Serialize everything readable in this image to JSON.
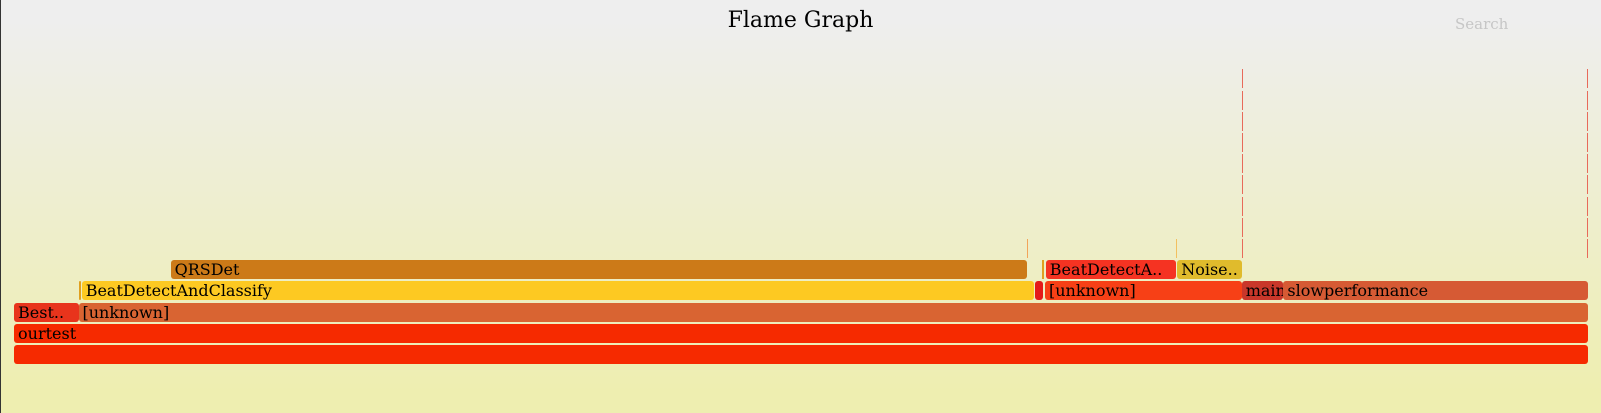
{
  "title": "Flame Graph",
  "search_label": "Search",
  "colors": {
    "bg_top": "#eeeeee",
    "bg_bottom": "#eeeeb0"
  },
  "chart_data": {
    "type": "flamegraph",
    "total_samples": 100,
    "frames": [
      {
        "label": "",
        "depth": 0,
        "start": 0,
        "width": 100,
        "color": "#f62a00"
      },
      {
        "label": "ourtest",
        "depth": 1,
        "start": 0,
        "width": 100,
        "color": "#f62a00"
      },
      {
        "label": "Best..",
        "depth": 2,
        "start": 0,
        "width": 4.1,
        "color": "#e8341c"
      },
      {
        "label": "[unknown]",
        "depth": 2,
        "start": 4.1,
        "width": 95.9,
        "color": "#d96432"
      },
      {
        "label": "",
        "depth": 3,
        "start": 4.1,
        "width": 0.15,
        "color": "#e0a020"
      },
      {
        "label": "BeatDetectAndClassify",
        "depth": 3,
        "start": 4.3,
        "width": 60.5,
        "color": "#fdc922"
      },
      {
        "label": "",
        "depth": 3,
        "start": 64.85,
        "width": 0.5,
        "color": "#e41a1a"
      },
      {
        "label": "[unknown]",
        "depth": 3,
        "start": 65.5,
        "width": 12.5,
        "color": "#f74016"
      },
      {
        "label": "main",
        "depth": 3,
        "start": 78.0,
        "width": 2.6,
        "color": "#c9372a"
      },
      {
        "label": "slowperformance",
        "depth": 3,
        "start": 80.65,
        "width": 19.35,
        "color": "#d65a34"
      },
      {
        "label": "QRSDet",
        "depth": 4,
        "start": 9.95,
        "width": 54.4,
        "color": "#cc7a18"
      },
      {
        "label": "",
        "depth": 4,
        "start": 65.3,
        "width": 0.12,
        "color": "#e0a020"
      },
      {
        "label": "BeatDetectA..",
        "depth": 4,
        "start": 65.55,
        "width": 8.3,
        "color": "#f53322"
      },
      {
        "label": "Noise..",
        "depth": 4,
        "start": 73.9,
        "width": 4.1,
        "color": "#e0bb2c"
      },
      {
        "label": "",
        "depth": 5,
        "start": 64.35,
        "width": 0.06,
        "color": "#f2a45a"
      },
      {
        "label": "",
        "depth": 5,
        "start": 64.35,
        "width": 0.06,
        "color": "#f2a45a"
      },
      {
        "label": "",
        "depth": 5,
        "start": 64.35,
        "width": 0.06,
        "color": "#f2a45a"
      },
      {
        "label": "",
        "depth": 5,
        "start": 73.85,
        "width": 0.06,
        "color": "#f2c060"
      },
      {
        "label": "",
        "depth": 5,
        "start": 78.0,
        "width": 0.06,
        "color": "#e86a5a"
      },
      {
        "label": "",
        "depth": 6,
        "start": 78.0,
        "width": 0.06,
        "color": "#e86a5a"
      },
      {
        "label": "",
        "depth": 7,
        "start": 78.0,
        "width": 0.06,
        "color": "#e86a5a"
      },
      {
        "label": "",
        "depth": 8,
        "start": 78.0,
        "width": 0.06,
        "color": "#e86a5a"
      },
      {
        "label": "",
        "depth": 9,
        "start": 78.0,
        "width": 0.06,
        "color": "#e86a5a"
      },
      {
        "label": "",
        "depth": 10,
        "start": 78.0,
        "width": 0.06,
        "color": "#e86a5a"
      },
      {
        "label": "",
        "depth": 11,
        "start": 78.0,
        "width": 0.06,
        "color": "#e86a5a"
      },
      {
        "label": "",
        "depth": 12,
        "start": 78.0,
        "width": 0.06,
        "color": "#e86a5a"
      },
      {
        "label": "",
        "depth": 13,
        "start": 78.0,
        "width": 0.06,
        "color": "#e86a5a"
      },
      {
        "label": "",
        "depth": 5,
        "start": 99.94,
        "width": 0.06,
        "color": "#e86a5a"
      },
      {
        "label": "",
        "depth": 6,
        "start": 99.94,
        "width": 0.06,
        "color": "#e86a5a"
      },
      {
        "label": "",
        "depth": 7,
        "start": 99.94,
        "width": 0.06,
        "color": "#e86a5a"
      },
      {
        "label": "",
        "depth": 8,
        "start": 99.94,
        "width": 0.06,
        "color": "#e86a5a"
      },
      {
        "label": "",
        "depth": 9,
        "start": 99.94,
        "width": 0.06,
        "color": "#e86a5a"
      },
      {
        "label": "",
        "depth": 10,
        "start": 99.94,
        "width": 0.06,
        "color": "#e86a5a"
      },
      {
        "label": "",
        "depth": 11,
        "start": 99.94,
        "width": 0.06,
        "color": "#e86a5a"
      },
      {
        "label": "",
        "depth": 12,
        "start": 99.94,
        "width": 0.06,
        "color": "#e86a5a"
      },
      {
        "label": "",
        "depth": 13,
        "start": 99.94,
        "width": 0.06,
        "color": "#e86a5a"
      }
    ]
  }
}
